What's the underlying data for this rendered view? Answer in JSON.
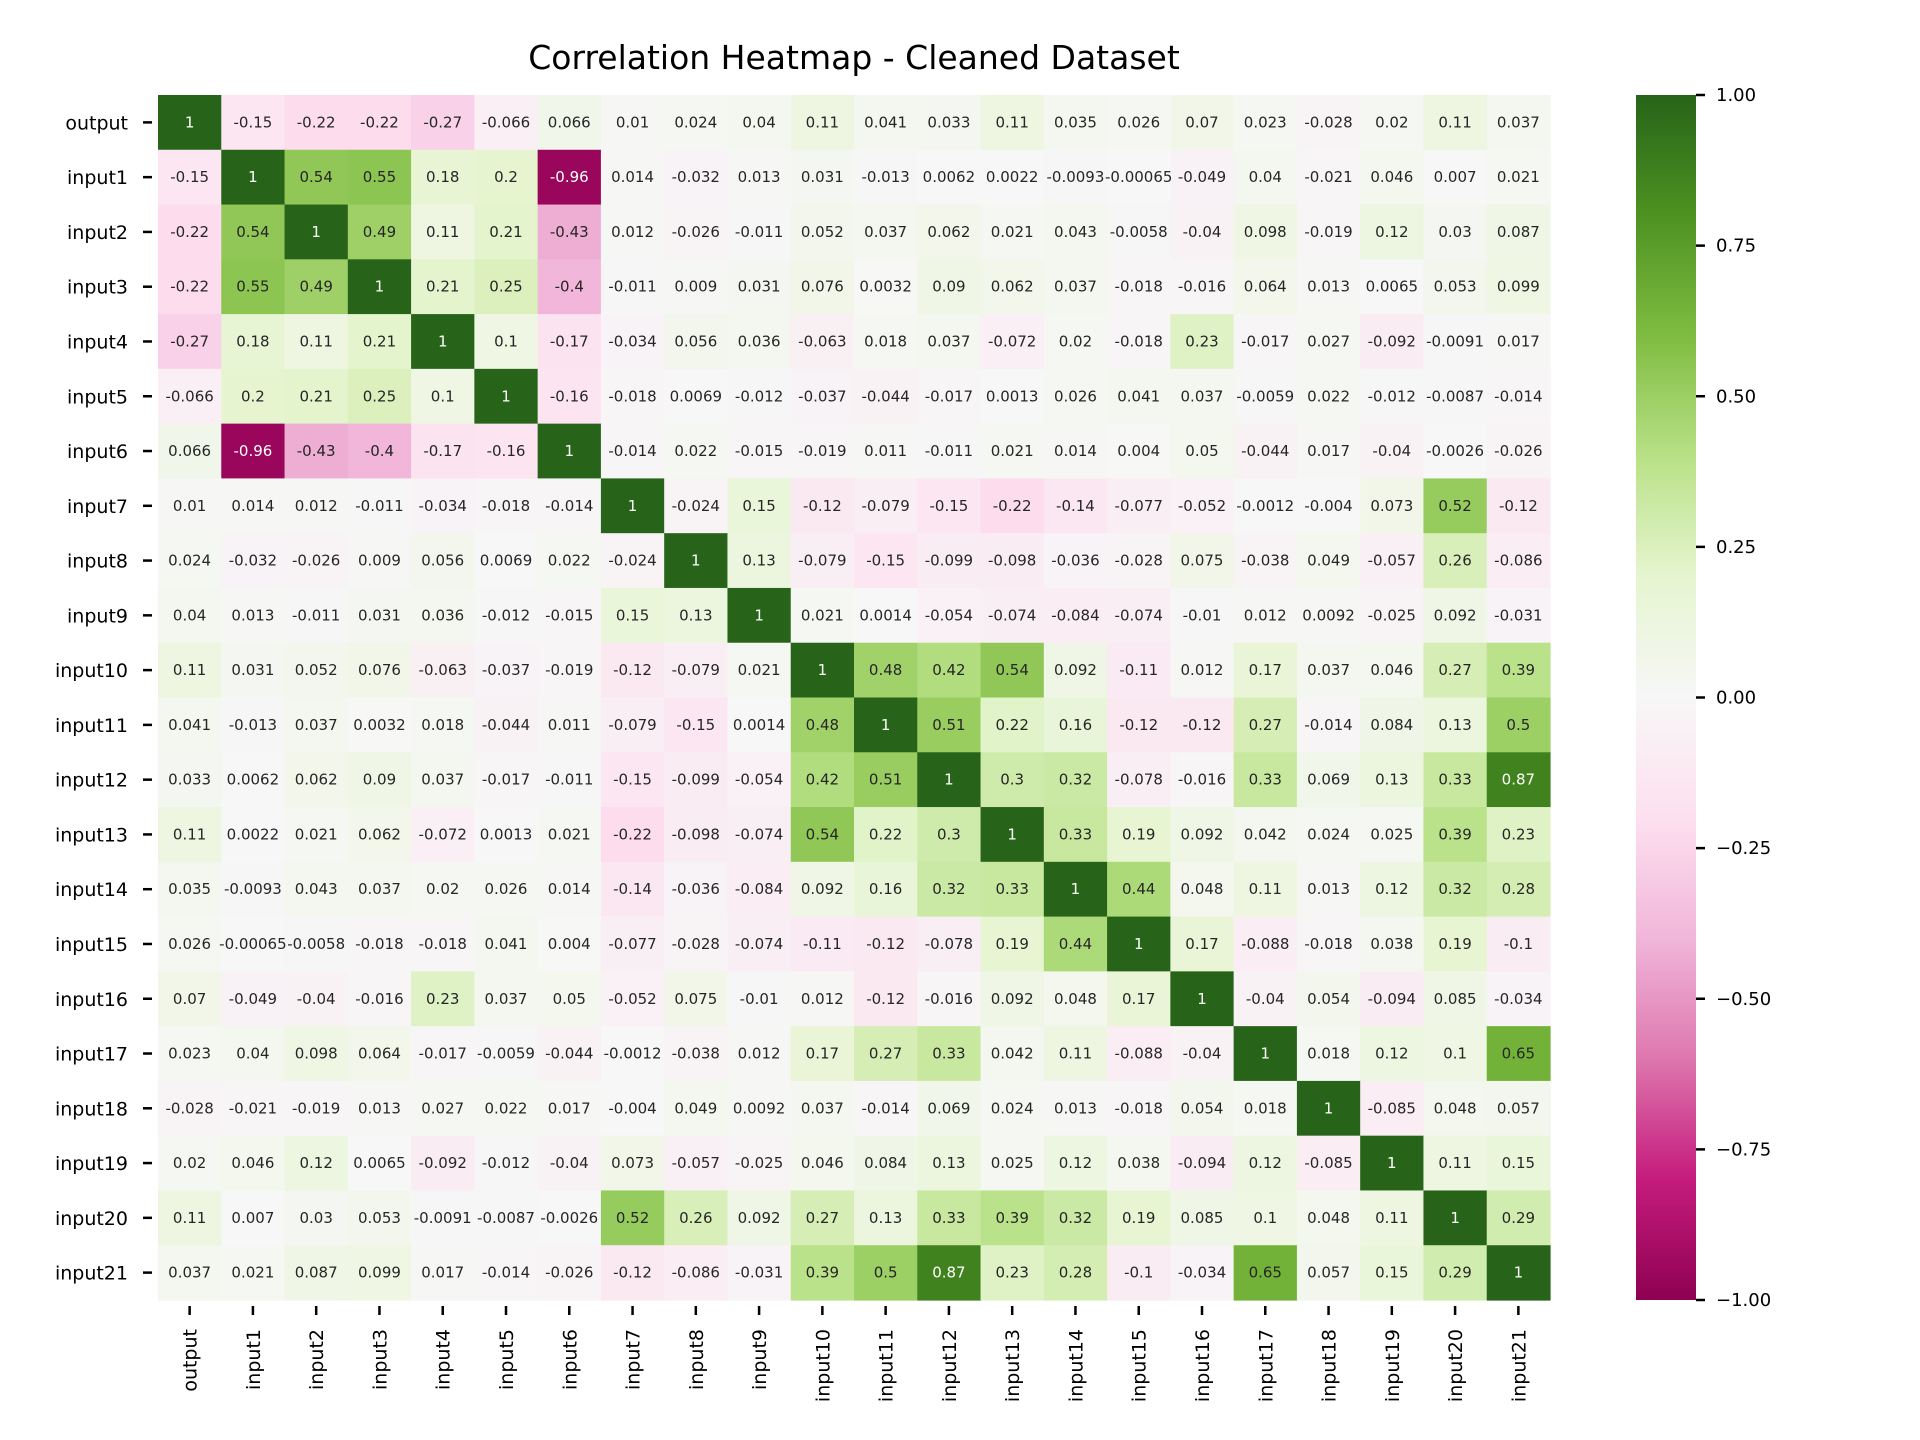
{
  "chart_data": {
    "type": "heatmap",
    "title": "Correlation Heatmap - Cleaned Dataset",
    "xlabel": "",
    "ylabel": "",
    "colormap": "PiYG",
    "vmin": -1.0,
    "vmax": 1.0,
    "colorbar_ticks": [
      1.0,
      0.75,
      0.5,
      0.25,
      0.0,
      -0.25,
      -0.5,
      -0.75,
      -1.0
    ],
    "colorbar_tick_labels": [
      "1.00",
      "0.75",
      "0.50",
      "0.25",
      "0.00",
      "−0.25",
      "−0.50",
      "−0.75",
      "−1.00"
    ],
    "colorbar_position": "right",
    "annotated": true,
    "grid": false,
    "labels": [
      "output",
      "input1",
      "input2",
      "input3",
      "input4",
      "input5",
      "input6",
      "input7",
      "input8",
      "input9",
      "input10",
      "input11",
      "input12",
      "input13",
      "input14",
      "input15",
      "input16",
      "input17",
      "input18",
      "input19",
      "input20",
      "input21"
    ],
    "cell_labels": [
      [
        "1",
        "-0.15",
        "-0.22",
        "-0.22",
        "-0.27",
        "-0.066",
        "0.066",
        "0.01",
        "0.024",
        "0.04",
        "0.11",
        "0.041",
        "0.033",
        "0.11",
        "0.035",
        "0.026",
        "0.07",
        "0.023",
        "-0.028",
        "0.02",
        "0.11",
        "0.037"
      ],
      [
        "-0.15",
        "1",
        "0.54",
        "0.55",
        "0.18",
        "0.2",
        "-0.96",
        "0.014",
        "-0.032",
        "0.013",
        "0.031",
        "-0.013",
        "0.0062",
        "0.0022",
        "-0.0093",
        "-0.00065",
        "-0.049",
        "0.04",
        "-0.021",
        "0.046",
        "0.007",
        "0.021"
      ],
      [
        "-0.22",
        "0.54",
        "1",
        "0.49",
        "0.11",
        "0.21",
        "-0.43",
        "0.012",
        "-0.026",
        "-0.011",
        "0.052",
        "0.037",
        "0.062",
        "0.021",
        "0.043",
        "-0.0058",
        "-0.04",
        "0.098",
        "-0.019",
        "0.12",
        "0.03",
        "0.087"
      ],
      [
        "-0.22",
        "0.55",
        "0.49",
        "1",
        "0.21",
        "0.25",
        "-0.4",
        "-0.011",
        "0.009",
        "0.031",
        "0.076",
        "0.0032",
        "0.09",
        "0.062",
        "0.037",
        "-0.018",
        "-0.016",
        "0.064",
        "0.013",
        "0.0065",
        "0.053",
        "0.099"
      ],
      [
        "-0.27",
        "0.18",
        "0.11",
        "0.21",
        "1",
        "0.1",
        "-0.17",
        "-0.034",
        "0.056",
        "0.036",
        "-0.063",
        "0.018",
        "0.037",
        "-0.072",
        "0.02",
        "-0.018",
        "0.23",
        "-0.017",
        "0.027",
        "-0.092",
        "-0.0091",
        "0.017"
      ],
      [
        "-0.066",
        "0.2",
        "0.21",
        "0.25",
        "0.1",
        "1",
        "-0.16",
        "-0.018",
        "0.0069",
        "-0.012",
        "-0.037",
        "-0.044",
        "-0.017",
        "0.0013",
        "0.026",
        "0.041",
        "0.037",
        "-0.0059",
        "0.022",
        "-0.012",
        "-0.0087",
        "-0.014"
      ],
      [
        "0.066",
        "-0.96",
        "-0.43",
        "-0.4",
        "-0.17",
        "-0.16",
        "1",
        "-0.014",
        "0.022",
        "-0.015",
        "-0.019",
        "0.011",
        "-0.011",
        "0.021",
        "0.014",
        "0.004",
        "0.05",
        "-0.044",
        "0.017",
        "-0.04",
        "-0.0026",
        "-0.026"
      ],
      [
        "0.01",
        "0.014",
        "0.012",
        "-0.011",
        "-0.034",
        "-0.018",
        "-0.014",
        "1",
        "-0.024",
        "0.15",
        "-0.12",
        "-0.079",
        "-0.15",
        "-0.22",
        "-0.14",
        "-0.077",
        "-0.052",
        "-0.0012",
        "-0.004",
        "0.073",
        "0.52",
        "-0.12"
      ],
      [
        "0.024",
        "-0.032",
        "-0.026",
        "0.009",
        "0.056",
        "0.0069",
        "0.022",
        "-0.024",
        "1",
        "0.13",
        "-0.079",
        "-0.15",
        "-0.099",
        "-0.098",
        "-0.036",
        "-0.028",
        "0.075",
        "-0.038",
        "0.049",
        "-0.057",
        "0.26",
        "-0.086"
      ],
      [
        "0.04",
        "0.013",
        "-0.011",
        "0.031",
        "0.036",
        "-0.012",
        "-0.015",
        "0.15",
        "0.13",
        "1",
        "0.021",
        "0.0014",
        "-0.054",
        "-0.074",
        "-0.084",
        "-0.074",
        "-0.01",
        "0.012",
        "0.0092",
        "-0.025",
        "0.092",
        "-0.031"
      ],
      [
        "0.11",
        "0.031",
        "0.052",
        "0.076",
        "-0.063",
        "-0.037",
        "-0.019",
        "-0.12",
        "-0.079",
        "0.021",
        "1",
        "0.48",
        "0.42",
        "0.54",
        "0.092",
        "-0.11",
        "0.012",
        "0.17",
        "0.037",
        "0.046",
        "0.27",
        "0.39"
      ],
      [
        "0.041",
        "-0.013",
        "0.037",
        "0.0032",
        "0.018",
        "-0.044",
        "0.011",
        "-0.079",
        "-0.15",
        "0.0014",
        "0.48",
        "1",
        "0.51",
        "0.22",
        "0.16",
        "-0.12",
        "-0.12",
        "0.27",
        "-0.014",
        "0.084",
        "0.13",
        "0.5"
      ],
      [
        "0.033",
        "0.0062",
        "0.062",
        "0.09",
        "0.037",
        "-0.017",
        "-0.011",
        "-0.15",
        "-0.099",
        "-0.054",
        "0.42",
        "0.51",
        "1",
        "0.3",
        "0.32",
        "-0.078",
        "-0.016",
        "0.33",
        "0.069",
        "0.13",
        "0.33",
        "0.87"
      ],
      [
        "0.11",
        "0.0022",
        "0.021",
        "0.062",
        "-0.072",
        "0.0013",
        "0.021",
        "-0.22",
        "-0.098",
        "-0.074",
        "0.54",
        "0.22",
        "0.3",
        "1",
        "0.33",
        "0.19",
        "0.092",
        "0.042",
        "0.024",
        "0.025",
        "0.39",
        "0.23"
      ],
      [
        "0.035",
        "-0.0093",
        "0.043",
        "0.037",
        "0.02",
        "0.026",
        "0.014",
        "-0.14",
        "-0.036",
        "-0.084",
        "0.092",
        "0.16",
        "0.32",
        "0.33",
        "1",
        "0.44",
        "0.048",
        "0.11",
        "0.013",
        "0.12",
        "0.32",
        "0.28"
      ],
      [
        "0.026",
        "-0.00065",
        "-0.0058",
        "-0.018",
        "-0.018",
        "0.041",
        "0.004",
        "-0.077",
        "-0.028",
        "-0.074",
        "-0.11",
        "-0.12",
        "-0.078",
        "0.19",
        "0.44",
        "1",
        "0.17",
        "-0.088",
        "-0.018",
        "0.038",
        "0.19",
        "-0.1"
      ],
      [
        "0.07",
        "-0.049",
        "-0.04",
        "-0.016",
        "0.23",
        "0.037",
        "0.05",
        "-0.052",
        "0.075",
        "-0.01",
        "0.012",
        "-0.12",
        "-0.016",
        "0.092",
        "0.048",
        "0.17",
        "1",
        "-0.04",
        "0.054",
        "-0.094",
        "0.085",
        "-0.034"
      ],
      [
        "0.023",
        "0.04",
        "0.098",
        "0.064",
        "-0.017",
        "-0.0059",
        "-0.044",
        "-0.0012",
        "-0.038",
        "0.012",
        "0.17",
        "0.27",
        "0.33",
        "0.042",
        "0.11",
        "-0.088",
        "-0.04",
        "1",
        "0.018",
        "0.12",
        "0.1",
        "0.65"
      ],
      [
        "-0.028",
        "-0.021",
        "-0.019",
        "0.013",
        "0.027",
        "0.022",
        "0.017",
        "-0.004",
        "0.049",
        "0.0092",
        "0.037",
        "-0.014",
        "0.069",
        "0.024",
        "0.013",
        "-0.018",
        "0.054",
        "0.018",
        "1",
        "-0.085",
        "0.048",
        "0.057"
      ],
      [
        "0.02",
        "0.046",
        "0.12",
        "0.0065",
        "-0.092",
        "-0.012",
        "-0.04",
        "0.073",
        "-0.057",
        "-0.025",
        "0.046",
        "0.084",
        "0.13",
        "0.025",
        "0.12",
        "0.038",
        "-0.094",
        "0.12",
        "-0.085",
        "1",
        "0.11",
        "0.15"
      ],
      [
        "0.11",
        "0.007",
        "0.03",
        "0.053",
        "-0.0091",
        "-0.0087",
        "-0.0026",
        "0.52",
        "0.26",
        "0.092",
        "0.27",
        "0.13",
        "0.33",
        "0.39",
        "0.32",
        "0.19",
        "0.085",
        "0.1",
        "0.048",
        "0.11",
        "1",
        "0.29"
      ],
      [
        "0.037",
        "0.021",
        "0.087",
        "0.099",
        "0.017",
        "-0.014",
        "-0.026",
        "-0.12",
        "-0.086",
        "-0.031",
        "0.39",
        "0.5",
        "0.87",
        "0.23",
        "0.28",
        "-0.1",
        "-0.034",
        "0.65",
        "0.057",
        "0.15",
        "0.29",
        "1"
      ]
    ]
  }
}
